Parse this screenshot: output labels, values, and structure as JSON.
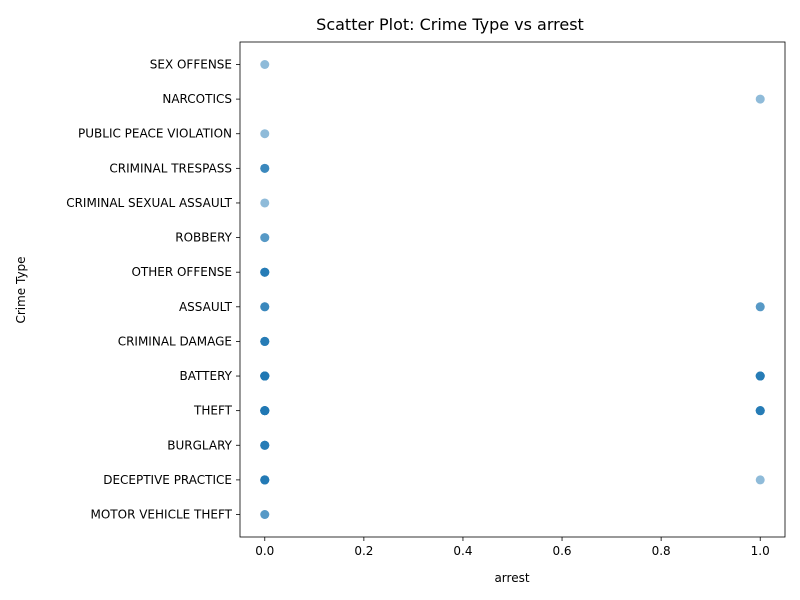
{
  "chart_data": {
    "type": "scatter",
    "title": "Scatter Plot: Crime Type vs arrest",
    "xlabel": "arrest",
    "ylabel": "Crime Type",
    "xlim": [
      -0.05,
      1.05
    ],
    "xticks": [
      0.0,
      0.2,
      0.4,
      0.6,
      0.8,
      1.0
    ],
    "xtick_labels": [
      "0.0",
      "0.2",
      "0.4",
      "0.6",
      "0.8",
      "1.0"
    ],
    "categories": [
      "MOTOR VEHICLE THEFT",
      "DECEPTIVE PRACTICE",
      "BURGLARY",
      "THEFT",
      "BATTERY",
      "CRIMINAL DAMAGE",
      "ASSAULT",
      "OTHER OFFENSE",
      "ROBBERY",
      "CRIMINAL SEXUAL ASSAULT",
      "CRIMINAL TRESPASS",
      "PUBLIC PEACE VIOLATION",
      "NARCOTICS",
      "SEX OFFENSE"
    ],
    "marker_color": "#1f77b4",
    "marker_alpha": 0.5,
    "grid": false,
    "points": [
      {
        "x": 0,
        "y": "MOTOR VEHICLE THEFT",
        "count": 2
      },
      {
        "x": 0,
        "y": "DECEPTIVE PRACTICE",
        "count": 6
      },
      {
        "x": 1,
        "y": "DECEPTIVE PRACTICE",
        "count": 1
      },
      {
        "x": 0,
        "y": "BURGLARY",
        "count": 5
      },
      {
        "x": 0,
        "y": "THEFT",
        "count": 10
      },
      {
        "x": 1,
        "y": "THEFT",
        "count": 5
      },
      {
        "x": 0,
        "y": "BATTERY",
        "count": 10
      },
      {
        "x": 1,
        "y": "BATTERY",
        "count": 5
      },
      {
        "x": 0,
        "y": "CRIMINAL DAMAGE",
        "count": 5
      },
      {
        "x": 0,
        "y": "ASSAULT",
        "count": 3
      },
      {
        "x": 1,
        "y": "ASSAULT",
        "count": 2
      },
      {
        "x": 0,
        "y": "OTHER OFFENSE",
        "count": 5
      },
      {
        "x": 0,
        "y": "ROBBERY",
        "count": 2
      },
      {
        "x": 0,
        "y": "CRIMINAL SEXUAL ASSAULT",
        "count": 1
      },
      {
        "x": 0,
        "y": "CRIMINAL TRESPASS",
        "count": 3
      },
      {
        "x": 0,
        "y": "PUBLIC PEACE VIOLATION",
        "count": 1
      },
      {
        "x": 1,
        "y": "NARCOTICS",
        "count": 1
      },
      {
        "x": 0,
        "y": "SEX OFFENSE",
        "count": 1
      }
    ]
  }
}
